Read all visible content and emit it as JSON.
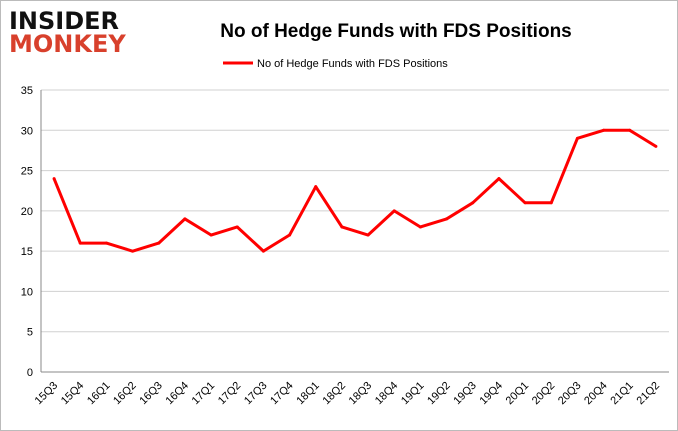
{
  "logo": {
    "line1": "INSIDER",
    "line2": "MONKEY"
  },
  "chart_data": {
    "type": "line",
    "title": "No of Hedge Funds with FDS Positions",
    "categories": [
      "15Q3",
      "15Q4",
      "16Q1",
      "16Q2",
      "16Q3",
      "16Q4",
      "17Q1",
      "17Q2",
      "17Q3",
      "17Q4",
      "18Q1",
      "18Q2",
      "18Q3",
      "18Q4",
      "19Q1",
      "19Q2",
      "19Q3",
      "19Q4",
      "20Q1",
      "20Q2",
      "20Q3",
      "20Q4",
      "21Q1",
      "21Q2"
    ],
    "series": [
      {
        "name": "No of Hedge Funds with FDS Positions",
        "color": "#ff0000",
        "values": [
          24,
          16,
          16,
          15,
          16,
          19,
          17,
          18,
          15,
          17,
          23,
          18,
          17,
          20,
          18,
          19,
          21,
          24,
          21,
          21,
          29,
          30,
          30,
          28
        ]
      }
    ],
    "ylim": [
      0,
      35
    ],
    "yticks": [
      0,
      5,
      10,
      15,
      20,
      25,
      30,
      35
    ],
    "grid": true,
    "legend": "top-center"
  }
}
